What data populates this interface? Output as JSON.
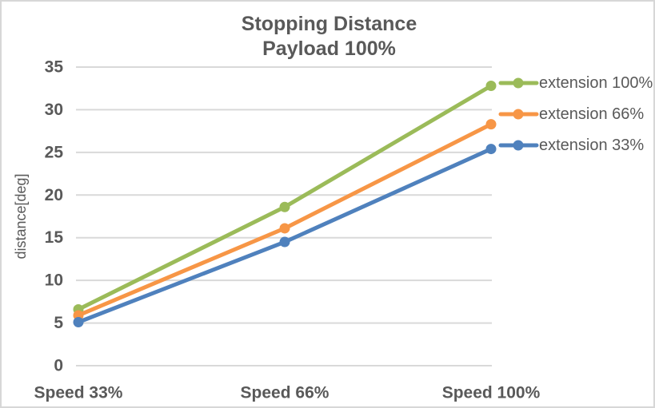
{
  "title": {
    "line1": "Stopping Distance",
    "line2": "Payload 100%"
  },
  "chart_data": {
    "type": "line",
    "categories": [
      "Speed 33%",
      "Speed 66%",
      "Speed 100%"
    ],
    "series": [
      {
        "name": "extension 100%",
        "color": "#9bbb59",
        "values": [
          6.6,
          18.6,
          32.8
        ]
      },
      {
        "name": "extension 66%",
        "color": "#f79646",
        "values": [
          5.9,
          16.1,
          28.3
        ]
      },
      {
        "name": "extension 33%",
        "color": "#4f81bd",
        "values": [
          5.1,
          14.5,
          25.4
        ]
      }
    ],
    "title": "Stopping Distance Payload 100%",
    "xlabel": "",
    "ylabel": "distance[deg]",
    "ylim": [
      0,
      35
    ],
    "yticks": [
      0,
      5,
      10,
      15,
      20,
      25,
      30,
      35
    ],
    "grid": true,
    "legend_position": "right",
    "marker": "circle",
    "colors": {
      "gridline": "#d9d9d9",
      "text": "#595959",
      "background": "#ffffff",
      "border": "#d7d7d7"
    }
  }
}
